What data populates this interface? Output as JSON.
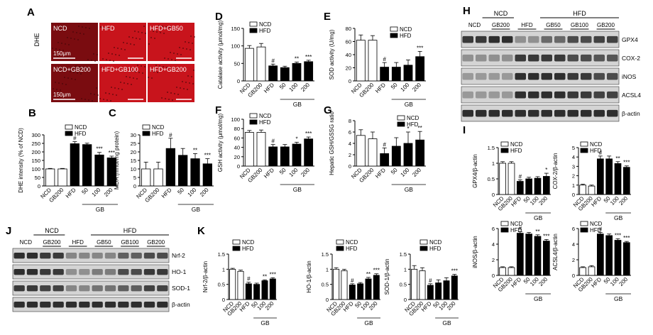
{
  "panel_letters": [
    "A",
    "B",
    "C",
    "D",
    "E",
    "F",
    "G",
    "H",
    "I",
    "J",
    "K"
  ],
  "micrographs": {
    "side_label": "DHE",
    "scale_bar": "150μm",
    "tiles": [
      "NCD",
      "HFD",
      "HFD+GB50",
      "NCD+GB200",
      "HFD+GB100",
      "HFD+GB200"
    ]
  },
  "legend": {
    "ncd": "NCD",
    "hfd": "HFD"
  },
  "groups": [
    "NCD",
    "GB200",
    "HFD",
    "50",
    "100",
    "200"
  ],
  "gb_label": "GB",
  "colors": {
    "ncd_fill": "#ffffff",
    "hfd_fill": "#000000",
    "micrograph_red": "#c8141c"
  },
  "western_H": {
    "header_ncd": "NCD",
    "header_hfd": "HFD",
    "lanes": [
      "NCD",
      "GB200",
      "HFD",
      "GB50",
      "GB100",
      "GB200"
    ],
    "bands": [
      "GPX4",
      "COX-2",
      "iNOS",
      "ACSL4",
      "β-actin"
    ]
  },
  "western_J": {
    "header_ncd": "NCD",
    "header_hfd": "HFD",
    "lanes": [
      "NCD",
      "GB200",
      "HFD",
      "GB50",
      "GB100",
      "GB200"
    ],
    "bands": [
      "Nrf-2",
      "HO-1",
      "SOD-1",
      "β-actin"
    ]
  },
  "chart_data": [
    {
      "panel": "B",
      "type": "bar",
      "ylabel": "DHE intensity (% of NCD)",
      "ylim": [
        0,
        300
      ],
      "yticks": [
        0,
        50,
        100,
        150,
        200,
        250,
        300
      ],
      "categories": [
        "NCD",
        "GB200",
        "HFD",
        "50",
        "100",
        "200"
      ],
      "values": [
        100,
        100,
        248,
        243,
        182,
        165
      ],
      "errors": [
        3,
        3,
        12,
        8,
        15,
        10
      ],
      "annotations": [
        "",
        "",
        "#",
        "",
        "***",
        "***"
      ]
    },
    {
      "panel": "C",
      "type": "bar",
      "ylabel": "MDA (nmol/mg protein)",
      "ylim": [
        0,
        30
      ],
      "yticks": [
        0,
        5,
        10,
        15,
        20,
        25,
        30
      ],
      "categories": [
        "NCD",
        "GB200",
        "HFD",
        "50",
        "100",
        "200"
      ],
      "values": [
        10,
        10,
        22,
        18,
        16,
        13
      ],
      "errors": [
        4,
        4,
        6,
        4,
        3,
        3
      ],
      "annotations": [
        "",
        "",
        "#",
        "",
        "**",
        "***"
      ]
    },
    {
      "panel": "D",
      "type": "bar",
      "ylabel": "Catalase activity (μmol/mg)",
      "ylim": [
        0,
        150
      ],
      "yticks": [
        0,
        50,
        100,
        150
      ],
      "categories": [
        "NCD",
        "GB200",
        "HFD",
        "50",
        "100",
        "200"
      ],
      "values": [
        93,
        97,
        43,
        38,
        50,
        55
      ],
      "errors": [
        8,
        10,
        5,
        4,
        4,
        4
      ],
      "annotations": [
        "",
        "",
        "#",
        "",
        "**",
        "***"
      ]
    },
    {
      "panel": "E",
      "type": "bar",
      "ylabel": "SOD activity (U/mg)",
      "ylim": [
        0,
        80
      ],
      "yticks": [
        0,
        20,
        40,
        60,
        80
      ],
      "categories": [
        "NCD",
        "GB200",
        "HFD",
        "50",
        "100",
        "200"
      ],
      "values": [
        62,
        62,
        21,
        21,
        24,
        37
      ],
      "errors": [
        8,
        7,
        7,
        7,
        8,
        8
      ],
      "annotations": [
        "",
        "",
        "#",
        "",
        "",
        "***"
      ]
    },
    {
      "panel": "F",
      "type": "bar",
      "ylabel": "GSH activity (μmol/mg)",
      "ylim": [
        0,
        100
      ],
      "yticks": [
        0,
        20,
        40,
        60,
        80,
        100
      ],
      "categories": [
        "NCD",
        "GB200",
        "HFD",
        "50",
        "100",
        "200"
      ],
      "values": [
        72,
        72,
        41,
        41,
        47,
        58
      ],
      "errors": [
        4,
        5,
        5,
        5,
        4,
        4
      ],
      "annotations": [
        "",
        "",
        "#",
        "",
        "*",
        "***"
      ]
    },
    {
      "panel": "G",
      "type": "bar",
      "ylabel": "Hepatic GSH/GSSG ratio",
      "ylim": [
        0,
        8
      ],
      "yticks": [
        0,
        2,
        4,
        6,
        8
      ],
      "categories": [
        "NCD",
        "GB200",
        "HFD",
        "50",
        "100",
        "200"
      ],
      "values": [
        5.4,
        4.8,
        2.2,
        3.5,
        4.0,
        4.6
      ],
      "errors": [
        1.0,
        1.2,
        1.0,
        1.5,
        2.0,
        1.5
      ],
      "annotations": [
        "",
        "",
        "#",
        "",
        "*",
        "**"
      ]
    },
    {
      "panel": "I",
      "type": "bar",
      "ylabel": "GPX4/β-actin",
      "ylim": [
        0,
        1.5
      ],
      "yticks": [
        0,
        0.5,
        1.0,
        1.5
      ],
      "categories": [
        "NCD",
        "GB200",
        "HFD",
        "50",
        "100",
        "200"
      ],
      "values": [
        1.0,
        1.0,
        0.42,
        0.5,
        0.52,
        0.58
      ],
      "errors": [
        0.05,
        0.05,
        0.05,
        0.05,
        0.05,
        0.1
      ],
      "annotations": [
        "",
        "",
        "#",
        "",
        "",
        "*"
      ]
    },
    {
      "panel": "I",
      "type": "bar",
      "ylabel": "COX-2/β-actin",
      "ylim": [
        0,
        5
      ],
      "yticks": [
        0,
        1,
        2,
        3,
        4,
        5
      ],
      "categories": [
        "NCD",
        "GB200",
        "HFD",
        "50",
        "100",
        "200"
      ],
      "values": [
        1.0,
        0.9,
        3.8,
        3.8,
        3.3,
        2.9
      ],
      "errors": [
        0.1,
        0.1,
        0.3,
        0.3,
        0.2,
        0.15
      ],
      "annotations": [
        "",
        "",
        "#",
        "",
        "**",
        "***"
      ]
    },
    {
      "panel": "I",
      "type": "bar",
      "ylabel": "iNOS/β-actin",
      "ylim": [
        0,
        6
      ],
      "yticks": [
        0,
        2,
        4,
        6
      ],
      "categories": [
        "NCD",
        "GB200",
        "HFD",
        "50",
        "100",
        "200"
      ],
      "values": [
        1.0,
        1.0,
        5.4,
        5.3,
        5.0,
        4.4
      ],
      "errors": [
        0.1,
        0.1,
        0.2,
        0.2,
        0.2,
        0.2
      ],
      "annotations": [
        "",
        "",
        "#",
        "",
        "**",
        "***"
      ]
    },
    {
      "panel": "I",
      "type": "bar",
      "ylabel": "ACSL4/β-actin",
      "ylim": [
        0,
        6
      ],
      "yticks": [
        0,
        2,
        4,
        6
      ],
      "categories": [
        "NCD",
        "GB200",
        "HFD",
        "50",
        "100",
        "200"
      ],
      "values": [
        1.0,
        1.1,
        5.3,
        5.1,
        4.5,
        4.2
      ],
      "errors": [
        0.1,
        0.15,
        0.2,
        0.2,
        0.2,
        0.15
      ],
      "annotations": [
        "",
        "",
        "#",
        "",
        "***",
        "***"
      ]
    },
    {
      "panel": "K",
      "type": "bar",
      "ylabel": "Nrf-2/β-actin",
      "ylim": [
        0,
        1.5
      ],
      "yticks": [
        0,
        0.5,
        1.0,
        1.5
      ],
      "categories": [
        "NCD",
        "GB200",
        "HFD",
        "50",
        "100",
        "200"
      ],
      "values": [
        1.0,
        0.93,
        0.52,
        0.5,
        0.62,
        0.68
      ],
      "errors": [
        0.03,
        0.04,
        0.05,
        0.04,
        0.03,
        0.04
      ],
      "annotations": [
        "",
        "",
        "#",
        "",
        "**",
        "***"
      ]
    },
    {
      "panel": "K",
      "type": "bar",
      "ylabel": "HO-1/β-actin",
      "ylim": [
        0,
        1.5
      ],
      "yticks": [
        0,
        0.5,
        1.0,
        1.5
      ],
      "categories": [
        "NCD",
        "GB200",
        "HFD",
        "50",
        "100",
        "200"
      ],
      "values": [
        1.0,
        0.95,
        0.48,
        0.52,
        0.68,
        0.8
      ],
      "errors": [
        0.05,
        0.05,
        0.04,
        0.04,
        0.05,
        0.05
      ],
      "annotations": [
        "",
        "",
        "#",
        "",
        "**",
        "***"
      ]
    },
    {
      "panel": "K",
      "type": "bar",
      "ylabel": "SOD-1/β-actin",
      "ylim": [
        0,
        1.5
      ],
      "yticks": [
        0,
        0.5,
        1.0,
        1.5
      ],
      "categories": [
        "NCD",
        "GB200",
        "HFD",
        "50",
        "100",
        "200"
      ],
      "values": [
        1.0,
        0.95,
        0.47,
        0.55,
        0.62,
        0.78
      ],
      "errors": [
        0.12,
        0.1,
        0.05,
        0.1,
        0.1,
        0.05
      ],
      "annotations": [
        "",
        "",
        "#",
        "",
        "",
        "***"
      ]
    }
  ]
}
